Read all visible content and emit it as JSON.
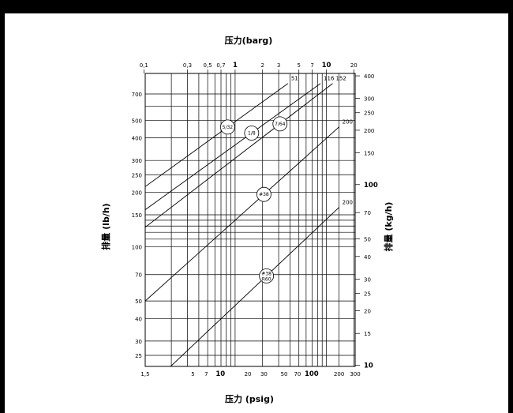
{
  "chart_data": {
    "type": "line",
    "title": "",
    "top_axis": {
      "label": "压力(barg)",
      "scale": "log",
      "ticks": [
        "0,1",
        "0,3",
        "0,5",
        "0,7",
        "1",
        "2",
        "3",
        "5",
        "7",
        "10",
        "20"
      ],
      "major": [
        "1",
        "10"
      ]
    },
    "bottom_axis": {
      "label": "压力 (psig)",
      "scale": "log",
      "ticks": [
        "1,5",
        "5",
        "7",
        "10",
        "20",
        "30",
        "50",
        "70",
        "100",
        "200",
        "300"
      ],
      "major": [
        "10",
        "100"
      ]
    },
    "left_axis": {
      "label": "排量 (lb/h)",
      "scale": "log",
      "ticks": [
        "700",
        "500",
        "400",
        "300",
        "250",
        "200",
        "150",
        "100",
        "70",
        "50",
        "40",
        "30",
        "25"
      ]
    },
    "right_axis": {
      "label": "排量 (kg/h)",
      "scale": "log",
      "ticks": [
        "400",
        "300",
        "250",
        "200",
        "150",
        "100",
        "70",
        "50",
        "40",
        "30",
        "25",
        "20",
        "15",
        "10"
      ],
      "major": [
        "100",
        "10"
      ]
    },
    "series": [
      {
        "name": "5/32",
        "end_label": "51",
        "points": [
          [
            1.5,
            215
          ],
          [
            55,
            800
          ]
        ]
      },
      {
        "name": "1/8",
        "end_label": "116",
        "points": [
          [
            1.5,
            160
          ],
          [
            125,
            800
          ]
        ]
      },
      {
        "name": "7/64",
        "end_label": "152",
        "points": [
          [
            1.5,
            128
          ],
          [
            170,
            800
          ]
        ]
      },
      {
        "name": "#38",
        "end_label": "200",
        "points": [
          [
            1.5,
            50
          ],
          [
            200,
            460
          ]
        ]
      },
      {
        "name": "#38 R60",
        "end_label": "200",
        "points": [
          [
            1.5,
            16
          ],
          [
            200,
            165
          ]
        ]
      }
    ],
    "grid": true
  }
}
